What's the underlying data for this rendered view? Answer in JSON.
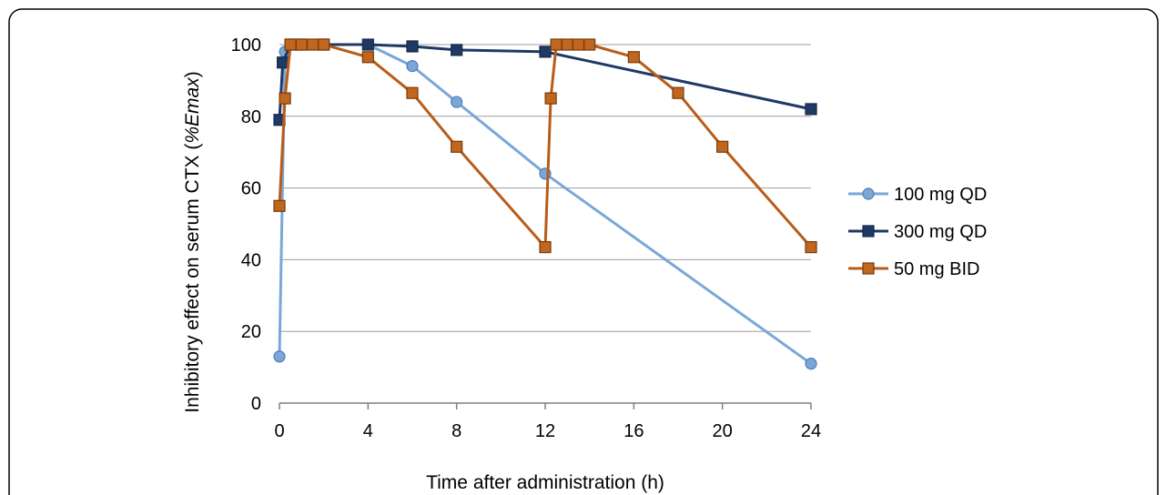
{
  "chart_data": {
    "type": "line",
    "title": "",
    "xlabel": "Time after administration (h)",
    "ylabel_main": "Inhibitory effect on serum CTX (",
    "ylabel_italic": "%Emax",
    "ylabel_close": ")",
    "xlim": [
      0,
      24
    ],
    "ylim": [
      0,
      100
    ],
    "xticks": [
      0,
      4,
      8,
      12,
      16,
      20,
      24
    ],
    "yticks": [
      0,
      20,
      40,
      60,
      80,
      100
    ],
    "grid": "horizontal",
    "legend_position": "right",
    "series": [
      {
        "name": "100 mg QD",
        "marker": "circle",
        "line_color": "#7aa7d8",
        "marker_fill": "#7aa7d8",
        "marker_edge": "#4f7fb8",
        "points": [
          [
            0,
            13
          ],
          [
            0.25,
            98
          ],
          [
            0.5,
            100
          ],
          [
            1,
            100
          ],
          [
            2,
            100
          ],
          [
            4,
            100
          ],
          [
            6,
            94
          ],
          [
            8,
            84
          ],
          [
            12,
            64
          ],
          [
            24,
            11
          ]
        ]
      },
      {
        "name": "300 mg QD",
        "marker": "square",
        "line_color": "#1f3864",
        "marker_fill": "#1f3864",
        "marker_edge": "#152a4d",
        "points": [
          [
            0,
            79
          ],
          [
            0.15,
            95
          ],
          [
            0.5,
            100
          ],
          [
            1,
            100
          ],
          [
            2,
            100
          ],
          [
            4,
            100
          ],
          [
            6,
            99.5
          ],
          [
            8,
            98.5
          ],
          [
            12,
            98
          ],
          [
            24,
            82
          ]
        ]
      },
      {
        "name": "50 mg BID",
        "marker": "square",
        "line_color": "#b85c1a",
        "marker_fill": "#c0661f",
        "marker_edge": "#7a3a0a",
        "points": [
          [
            0,
            55
          ],
          [
            0.25,
            85
          ],
          [
            0.5,
            100
          ],
          [
            1,
            100
          ],
          [
            1.5,
            100
          ],
          [
            2,
            100
          ],
          [
            4,
            96.5
          ],
          [
            6,
            86.5
          ],
          [
            8,
            71.5
          ],
          [
            12,
            43.5
          ],
          [
            12.25,
            85
          ],
          [
            12.5,
            100
          ],
          [
            13,
            100
          ],
          [
            13.5,
            100
          ],
          [
            14,
            100
          ],
          [
            16,
            96.5
          ],
          [
            18,
            86.5
          ],
          [
            20,
            71.5
          ],
          [
            24,
            43.5
          ]
        ]
      }
    ]
  }
}
